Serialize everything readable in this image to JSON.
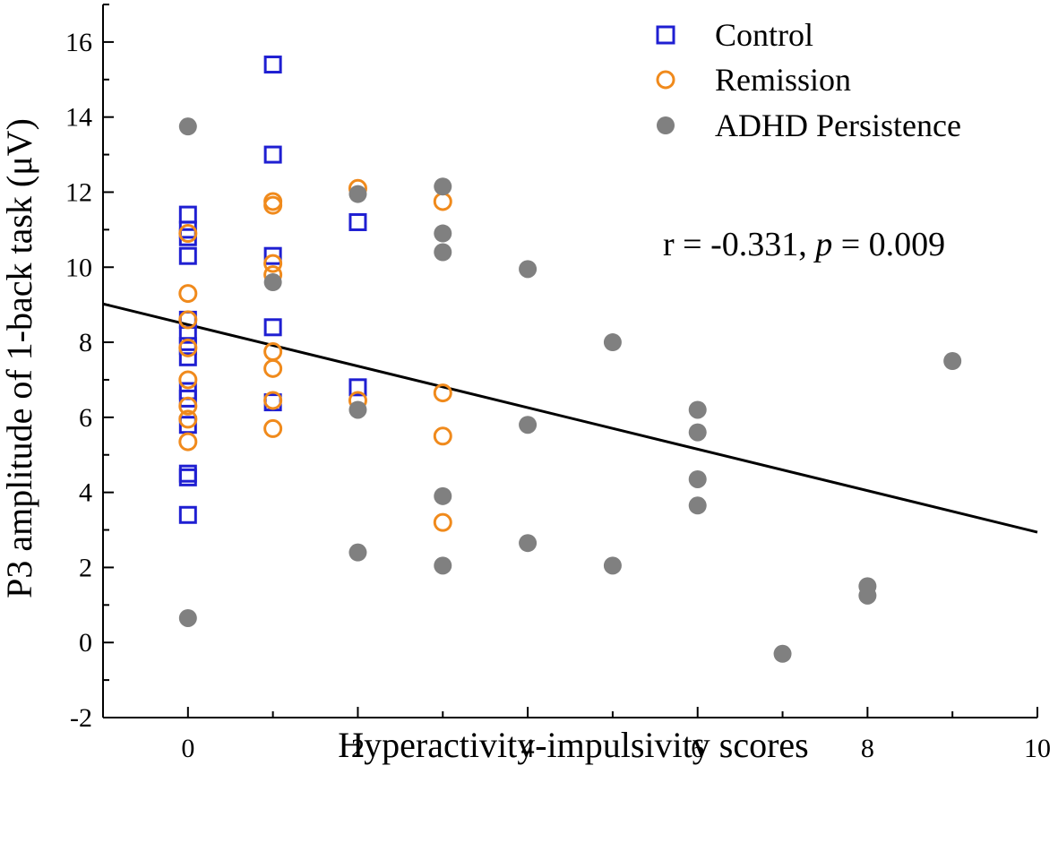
{
  "chart_data": {
    "type": "scatter",
    "xlabel": "Hyperactivity-impulsivity scores",
    "ylabel": "P3 amplitude of 1-back task (μV)",
    "xlim": [
      -1,
      10
    ],
    "ylim": [
      -2,
      17
    ],
    "x_ticks": [
      0,
      2,
      4,
      6,
      8,
      10
    ],
    "y_ticks": [
      -2,
      0,
      2,
      4,
      6,
      8,
      10,
      12,
      14,
      16
    ],
    "legend_position": "top-right",
    "series": [
      {
        "name": "Control",
        "marker": "open-square",
        "color": "#1f1fd2",
        "points": [
          [
            0,
            11.4
          ],
          [
            0,
            11.0
          ],
          [
            0,
            10.8
          ],
          [
            0,
            10.3
          ],
          [
            0,
            8.6
          ],
          [
            0,
            8.2
          ],
          [
            0,
            7.9
          ],
          [
            0,
            7.6
          ],
          [
            0,
            6.7
          ],
          [
            0,
            6.5
          ],
          [
            0,
            5.8
          ],
          [
            0,
            4.5
          ],
          [
            0,
            4.4
          ],
          [
            0,
            3.4
          ],
          [
            1,
            15.4
          ],
          [
            1,
            13.0
          ],
          [
            1,
            10.3
          ],
          [
            1,
            8.4
          ],
          [
            1,
            6.4
          ],
          [
            2,
            11.2
          ],
          [
            2,
            6.8
          ]
        ]
      },
      {
        "name": "Remission",
        "marker": "open-circle",
        "color": "#f08a1c",
        "points": [
          [
            0,
            10.9
          ],
          [
            0,
            9.3
          ],
          [
            0,
            8.6
          ],
          [
            0,
            7.85
          ],
          [
            0,
            7.0
          ],
          [
            0,
            6.3
          ],
          [
            0,
            5.95
          ],
          [
            0,
            5.35
          ],
          [
            1,
            11.75
          ],
          [
            1,
            11.65
          ],
          [
            1,
            10.1
          ],
          [
            1,
            9.8
          ],
          [
            1,
            7.75
          ],
          [
            1,
            7.3
          ],
          [
            1,
            6.45
          ],
          [
            1,
            5.7
          ],
          [
            2,
            12.1
          ],
          [
            2,
            6.45
          ],
          [
            3,
            11.75
          ],
          [
            3,
            6.65
          ],
          [
            3,
            5.5
          ],
          [
            3,
            3.2
          ]
        ]
      },
      {
        "name": "ADHD Persistence",
        "marker": "filled-circle",
        "color": "#808080",
        "points": [
          [
            0,
            13.75
          ],
          [
            0,
            0.65
          ],
          [
            1,
            9.6
          ],
          [
            2,
            11.95
          ],
          [
            2,
            6.2
          ],
          [
            2,
            2.4
          ],
          [
            3,
            12.15
          ],
          [
            3,
            10.9
          ],
          [
            3,
            10.4
          ],
          [
            3,
            3.9
          ],
          [
            3,
            2.05
          ],
          [
            4,
            9.95
          ],
          [
            4,
            5.8
          ],
          [
            4,
            2.65
          ],
          [
            5,
            8.0
          ],
          [
            5,
            2.05
          ],
          [
            6,
            6.2
          ],
          [
            6,
            5.6
          ],
          [
            6,
            4.35
          ],
          [
            6,
            3.65
          ],
          [
            7,
            -0.3
          ],
          [
            8,
            1.5
          ],
          [
            8,
            1.25
          ],
          [
            9,
            7.5
          ]
        ]
      }
    ],
    "regression_line": {
      "intercept": 8.47,
      "slope": -0.553,
      "x_range": [
        -1,
        10
      ]
    },
    "annotation": {
      "r_text": "r = -0.331, ",
      "p_symbol": "p",
      "p_text": " = 0.009"
    }
  }
}
